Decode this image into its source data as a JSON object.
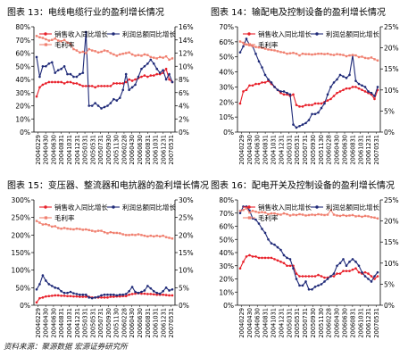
{
  "source_note": "资料来源：聚源数据 宏源证券研究所",
  "colors": {
    "revenue": "#e8202a",
    "profit": "#1f2a78",
    "margin": "#f08070",
    "axis": "#000000"
  },
  "chart_data": [
    {
      "type": "line",
      "title": "图表 13：电线电缆行业的盈利增长情况",
      "x_tick_labels": [
        "20040229",
        "20040430",
        "20040630",
        "20040831",
        "20041031",
        "20041231",
        "20050331",
        "20050531",
        "20050731",
        "20050930",
        "20051130",
        "20060228",
        "20060430",
        "20060630",
        "20060831",
        "20061031",
        "20061231",
        "20070531"
      ],
      "left_axis": {
        "ylim": [
          0,
          80
        ],
        "ticks": [
          "0%",
          "10%",
          "20%",
          "30%",
          "40%",
          "50%",
          "60%",
          "70%",
          "80%"
        ]
      },
      "right_axis": {
        "ylim": [
          0,
          16
        ],
        "ticks": [
          "0%",
          "2%",
          "4%",
          "6%",
          "8%",
          "10%",
          "12%",
          "14%",
          "16%"
        ]
      },
      "legend": [
        "销售收入同比增长",
        "利润总额同比增长",
        "毛利率"
      ],
      "series": [
        {
          "name": "销售收入同比增长",
          "axis": "left",
          "values": [
            27,
            34,
            36,
            37,
            38,
            38,
            38,
            38,
            38,
            37,
            38,
            38,
            37,
            37,
            36,
            35,
            35,
            35,
            35,
            34,
            35,
            35,
            35,
            35,
            35,
            37,
            37,
            37,
            37,
            38,
            40,
            39,
            40,
            41,
            42,
            43,
            42,
            43,
            43,
            44,
            44,
            45,
            48,
            40,
            38
          ]
        },
        {
          "name": "利润总额同比增长",
          "axis": "left",
          "values": [
            57,
            42,
            50,
            50,
            52,
            53,
            45,
            47,
            48,
            50,
            44,
            44,
            42,
            42,
            44,
            45,
            76,
            20,
            20,
            22,
            20,
            18,
            19,
            20,
            22,
            25,
            24,
            26,
            32,
            44,
            32,
            34,
            36,
            42,
            48,
            50,
            52,
            55,
            52,
            48,
            45,
            47,
            40,
            44,
            38
          ]
        },
        {
          "name": "毛利率",
          "axis": "right",
          "values": [
            14.6,
            14.4,
            14.3,
            14.1,
            13.9,
            14.0,
            14.2,
            13.9,
            13.8,
            14.0,
            13.6,
            13.4,
            12.6,
            12.4,
            12.1,
            12.2,
            12.0,
            12.6,
            12.4,
            12.3,
            12.1,
            12.2,
            12.4,
            12.3,
            12.0,
            11.8,
            11.6,
            11.8,
            11.9,
            12.0,
            12.1,
            11.8,
            11.6,
            11.7,
            11.6,
            11.8,
            11.7,
            11.4,
            11.3,
            11.2,
            11.4,
            11.3,
            11.5,
            11.0,
            11.2
          ]
        }
      ]
    },
    {
      "type": "line",
      "title": "图表 14：输配电及控制设备的盈利增长情况",
      "x_tick_labels": [
        "20040229",
        "20040430",
        "20040630",
        "20040831",
        "20041031",
        "20041231",
        "20050331",
        "20050531",
        "20050731",
        "20050930",
        "20051130",
        "20060228",
        "20060430",
        "20060630",
        "20060831",
        "20061031",
        "20061231",
        "20070531"
      ],
      "left_axis": {
        "ylim": [
          0,
          70
        ],
        "ticks": [
          "0%",
          "10%",
          "20%",
          "30%",
          "40%",
          "50%",
          "60%",
          "70%"
        ]
      },
      "right_axis": {
        "ylim": [
          0,
          25
        ],
        "ticks": [
          "0%",
          "5%",
          "10%",
          "15%",
          "20%",
          "25%"
        ]
      },
      "legend": [
        "销售收入同比增长",
        "利润总额同比增长",
        "毛利率"
      ],
      "series": [
        {
          "name": "销售收入同比增长",
          "axis": "left",
          "values": [
            19,
            27,
            28,
            31,
            31,
            32,
            32,
            33,
            33,
            34,
            32,
            30,
            28,
            26,
            25,
            25,
            24,
            25,
            18,
            17,
            17,
            18,
            18,
            18,
            19,
            19,
            19,
            20,
            21,
            22,
            24,
            26,
            27,
            28,
            29,
            29,
            30,
            30,
            29,
            28,
            27,
            26,
            25,
            22,
            28
          ]
        },
        {
          "name": "利润总额同比增长",
          "axis": "left",
          "values": [
            53,
            57,
            62,
            58,
            57,
            52,
            47,
            43,
            38,
            35,
            33,
            30,
            28,
            27,
            27,
            26,
            25,
            5,
            3,
            4,
            5,
            6,
            8,
            12,
            12,
            13,
            16,
            19,
            25,
            30,
            33,
            35,
            38,
            37,
            36,
            38,
            51,
            34,
            32,
            31,
            30,
            27,
            26,
            24,
            30
          ]
        },
        {
          "name": "毛利率",
          "axis": "right",
          "values": [
            21.5,
            21.2,
            20.8,
            20.6,
            20.4,
            20.2,
            20.1,
            20.0,
            19.8,
            19.6,
            19.5,
            19.4,
            19.2,
            19.0,
            18.9,
            18.6,
            18.7,
            18.8,
            18.6,
            18.2,
            18.6,
            18.5,
            18.5,
            18.4,
            18.5,
            18.6,
            18.6,
            18.5,
            18.6,
            18.4,
            18.3,
            18.5,
            18.4,
            18.3,
            18.0,
            18.2,
            18.3,
            18.2,
            17.8,
            17.9,
            17.6,
            17.5,
            17.7,
            17.3,
            17.0
          ]
        }
      ]
    },
    {
      "type": "line",
      "title": "图表 15：变压器、整流器和电抗器的盈利增长情况",
      "x_tick_labels": [
        "20040229",
        "20040430",
        "20040630",
        "20040831",
        "20041031",
        "20041231",
        "20050331",
        "20050531",
        "20050731",
        "20050930",
        "20051130",
        "20060228",
        "20060430",
        "20060630",
        "20060831",
        "20061031",
        "20061231",
        "20070531"
      ],
      "left_axis": {
        "ylim": [
          0,
          300
        ],
        "ticks": [
          "0%",
          "50%",
          "100%",
          "150%",
          "200%",
          "250%",
          "300%"
        ]
      },
      "right_axis": {
        "ylim": [
          0,
          30
        ],
        "ticks": [
          "0%",
          "5%",
          "10%",
          "15%",
          "20%",
          "25%",
          "30%"
        ]
      },
      "legend": [
        "销售收入同比增长",
        "利润总额同比增长",
        "毛利率"
      ],
      "series": [
        {
          "name": "销售收入同比增长",
          "axis": "left",
          "values": [
            8,
            20,
            22,
            25,
            26,
            27,
            28,
            28,
            27,
            27,
            26,
            26,
            25,
            25,
            24,
            24,
            24,
            24,
            22,
            22,
            22,
            22,
            22,
            22,
            24,
            24,
            25,
            25,
            26,
            26,
            30,
            32,
            33,
            34,
            33,
            33,
            32,
            32,
            31,
            30,
            30,
            30,
            29,
            28,
            28
          ]
        },
        {
          "name": "利润总额同比增长",
          "axis": "left",
          "values": [
            45,
            60,
            85,
            70,
            60,
            55,
            50,
            48,
            40,
            35,
            35,
            38,
            34,
            32,
            30,
            30,
            30,
            22,
            20,
            22,
            24,
            28,
            30,
            30,
            30,
            30,
            28,
            30,
            30,
            32,
            40,
            52,
            38,
            35,
            38,
            42,
            55,
            48,
            40,
            35,
            33,
            40,
            50,
            42,
            45
          ]
        },
        {
          "name": "毛利率",
          "axis": "right",
          "values": [
            24.0,
            23.5,
            23.0,
            23.1,
            22.8,
            22.4,
            22.5,
            22.0,
            21.8,
            22.0,
            21.8,
            21.7,
            21.6,
            21.8,
            21.7,
            21.5,
            21.6,
            21.4,
            21.2,
            21.0,
            21.2,
            21.2,
            20.8,
            20.5,
            20.8,
            20.6,
            20.6,
            20.5,
            20.2,
            20.0,
            20.0,
            20.1,
            20.0,
            20.2,
            20.0,
            19.8,
            19.6,
            19.8,
            19.6,
            19.8,
            19.6,
            19.8,
            19.4,
            19.2,
            19.0
          ]
        }
      ]
    },
    {
      "type": "line",
      "title": "图表 16：配电开关及控制设备的盈利增长情况",
      "x_tick_labels": [
        "20040229",
        "20040430",
        "20040630",
        "20040831",
        "20041031",
        "20041231",
        "20050331",
        "20050531",
        "20050731",
        "20050930",
        "20051130",
        "20060228",
        "20060430",
        "20060630",
        "20060831",
        "20061031",
        "20061231",
        "20070531"
      ],
      "left_axis": {
        "ylim": [
          0,
          80
        ],
        "ticks": [
          "0%",
          "10%",
          "20%",
          "30%",
          "40%",
          "50%",
          "60%",
          "70%",
          "80%"
        ]
      },
      "right_axis": {
        "ylim": [
          0,
          25
        ],
        "ticks": [
          "0%",
          "5%",
          "10%",
          "15%",
          "20%",
          "25%"
        ]
      },
      "legend": [
        "销售收入同比增长",
        "利润总额同比增长",
        "毛利率"
      ],
      "series": [
        {
          "name": "销售收入同比增长",
          "axis": "left",
          "values": [
            28,
            33,
            37,
            38,
            37,
            37,
            36,
            36,
            36,
            36,
            36,
            35,
            34,
            33,
            32,
            30,
            30,
            30,
            24,
            22,
            22,
            22,
            22,
            22,
            22,
            23,
            22,
            21,
            21,
            22,
            22,
            24,
            24,
            26,
            26,
            26,
            27,
            28,
            25,
            24,
            25,
            24,
            22,
            20,
            22
          ]
        },
        {
          "name": "利润总额同比增长",
          "axis": "left",
          "values": [
            70,
            75,
            75,
            72,
            66,
            65,
            62,
            58,
            55,
            50,
            47,
            46,
            44,
            42,
            38,
            36,
            35,
            28,
            20,
            15,
            15,
            18,
            12,
            12,
            14,
            15,
            16,
            18,
            20,
            22,
            24,
            30,
            32,
            35,
            30,
            33,
            35,
            33,
            30,
            25,
            22,
            20,
            18,
            22,
            25
          ]
        },
        {
          "name": "毛利率",
          "axis": "right",
          "values": [
            22.4,
            22.6,
            23.0,
            22.0,
            22.4,
            22.2,
            22.0,
            22.1,
            22.0,
            21.6,
            21.8,
            21.8,
            21.6,
            21.5,
            21.8,
            21.6,
            21.3,
            21.5,
            21.4,
            21.6,
            21.5,
            21.3,
            21.4,
            21.5,
            21.4,
            21.6,
            21.5,
            21.4,
            21.5,
            22.6,
            21.5,
            21.3,
            21.2,
            21.4,
            21.2,
            21.3,
            21.4,
            21.1,
            21.2,
            21.0,
            21.2,
            21.1,
            20.9,
            20.8,
            20.6
          ]
        }
      ]
    }
  ]
}
